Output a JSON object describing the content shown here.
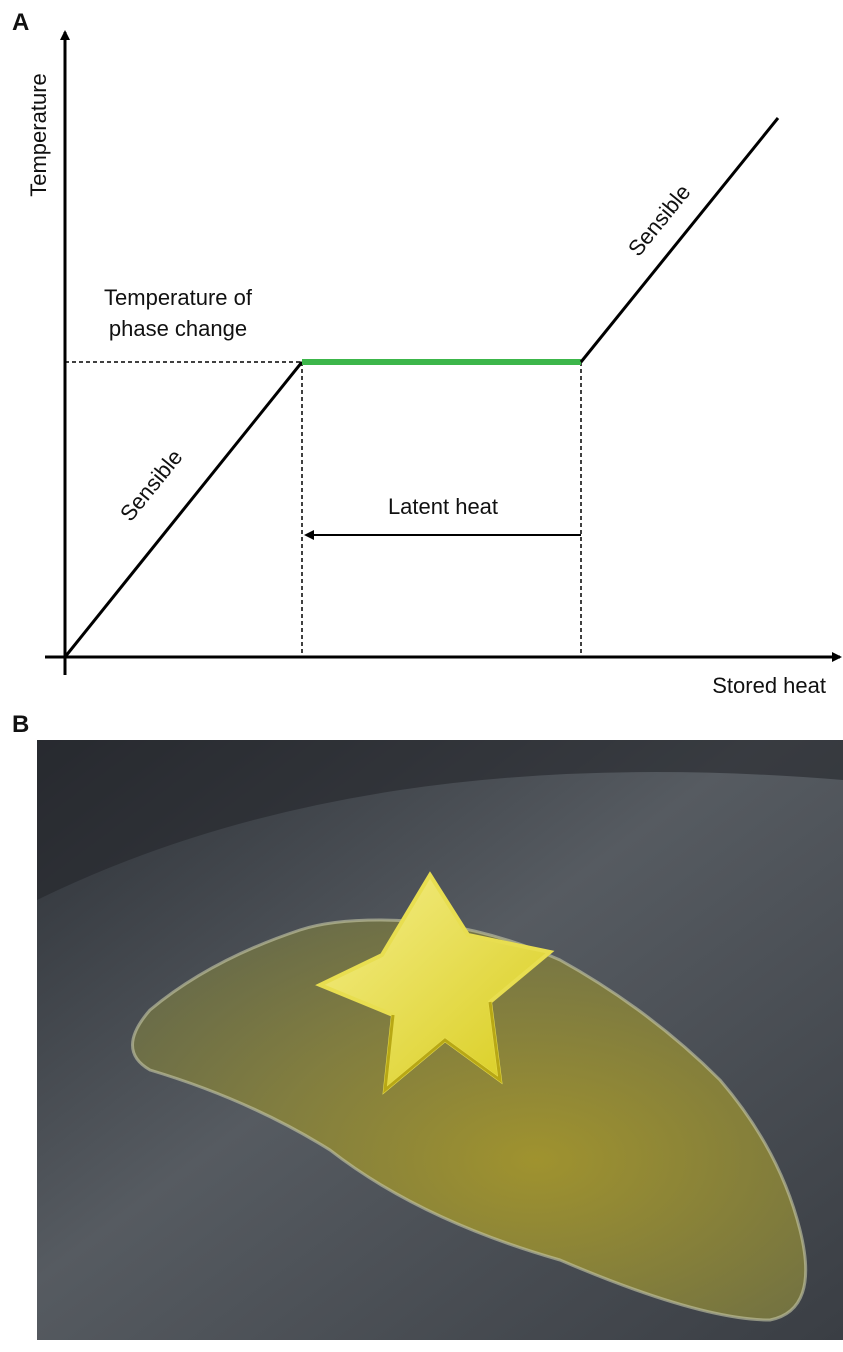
{
  "panel_a": {
    "label": "A",
    "y_axis_label": "Temperature",
    "x_axis_label": "Stored heat",
    "phase_change_label": [
      "Temperature of",
      "phase change"
    ],
    "sensible_labels": [
      "Sensible",
      "Sensible"
    ],
    "latent_heat_label": "Latent heat"
  },
  "panel_b": {
    "label": "B"
  }
}
